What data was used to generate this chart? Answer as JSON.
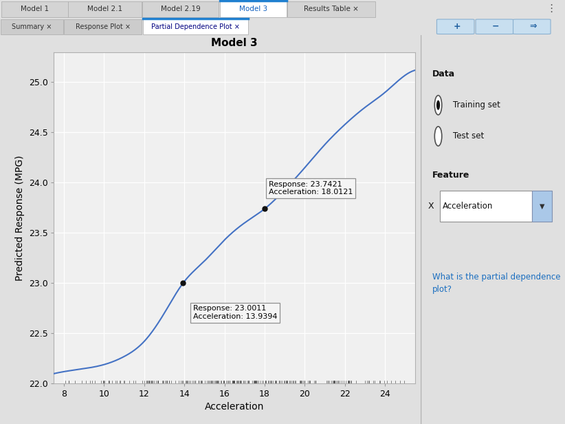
{
  "title": "Model 3",
  "xlabel": "Acceleration",
  "ylabel": "Predicted Response (MPG)",
  "xlim": [
    7.5,
    25.5
  ],
  "ylim": [
    22.0,
    25.3
  ],
  "yticks": [
    22.0,
    22.5,
    23.0,
    23.5,
    24.0,
    24.5,
    25.0
  ],
  "xticks": [
    8,
    10,
    12,
    14,
    16,
    18,
    20,
    22,
    24
  ],
  "bg_color": "#e0e0e0",
  "plot_bg_color": "#f0f0f0",
  "line_color": "#4472C4",
  "point1_x": 13.9394,
  "point1_y": 23.0011,
  "point2_x": 18.0121,
  "point2_y": 23.7421,
  "tooltip1_text": "Response: 23.0011\nAcceleration: 13.9394",
  "tooltip2_text": "Response: 23.7421\nAcceleration: 18.0121",
  "panel_bg": "#e0e0e0",
  "sidebar_bg": "#e8e8e8",
  "sidebar_title_data": "Data",
  "sidebar_radio1": "Training set",
  "sidebar_radio2": "Test set",
  "sidebar_feature_label": "Feature",
  "sidebar_x_label": "X",
  "sidebar_dropdown": "Acceleration",
  "sidebar_link": "What is the partial dependence\nplot?",
  "tab_labels": [
    "Model 1",
    "Model 2.1",
    "Model 2.19",
    "Model 3",
    "Results Table ×"
  ],
  "subtab_labels": [
    "Summary ×",
    "Response Plot ×",
    "Partial Dependence Plot ×"
  ]
}
